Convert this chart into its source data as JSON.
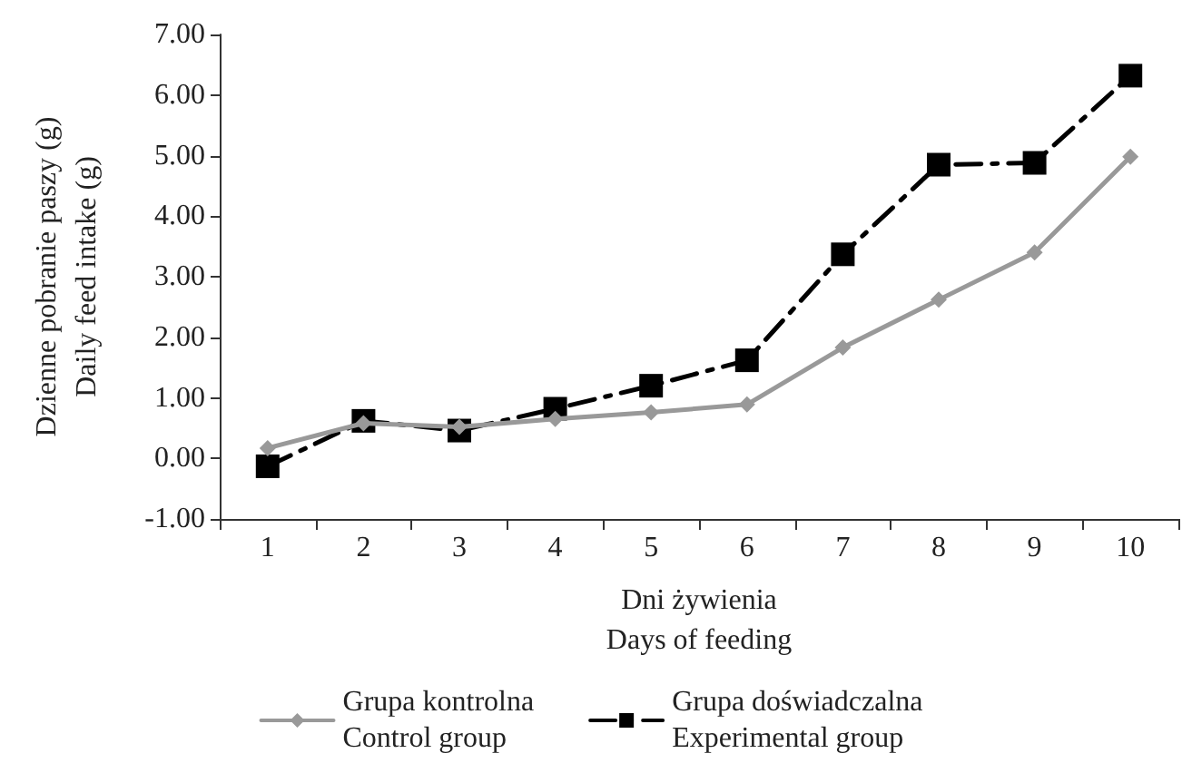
{
  "chart_data": {
    "type": "line",
    "xlabel": "Dni żywienia\nDays of feeding",
    "ylabel": "Dzienne pobranie paszy (g)\nDaily feed intake (g)",
    "categories": [
      "1",
      "2",
      "3",
      "4",
      "5",
      "6",
      "7",
      "8",
      "9",
      "10"
    ],
    "series": [
      {
        "name": "Grupa kontrolna\nControl group",
        "color": "#999999",
        "marker": "diamond",
        "line_style": "solid",
        "values": [
          0.17,
          0.58,
          0.52,
          0.65,
          0.76,
          0.89,
          1.83,
          2.62,
          3.4,
          4.98
        ]
      },
      {
        "name": "Grupa doświadczalna\nExperimental group",
        "color": "#000000",
        "marker": "square",
        "line_style": "dashed",
        "values": [
          -0.13,
          0.62,
          0.46,
          0.82,
          1.2,
          1.62,
          3.37,
          4.85,
          4.88,
          6.32
        ]
      }
    ],
    "ylim": [
      -1,
      7
    ],
    "yticks": [
      {
        "value": -1,
        "label": "-1.00"
      },
      {
        "value": 0,
        "label": "0.00"
      },
      {
        "value": 1,
        "label": "1.00"
      },
      {
        "value": 2,
        "label": "2.00"
      },
      {
        "value": 3,
        "label": "3.00"
      },
      {
        "value": 4,
        "label": "4.00"
      },
      {
        "value": 5,
        "label": "5.00"
      },
      {
        "value": 6,
        "label": "6.00"
      },
      {
        "value": 7,
        "label": "7.00"
      }
    ],
    "grid": false,
    "legend": "bottom"
  }
}
